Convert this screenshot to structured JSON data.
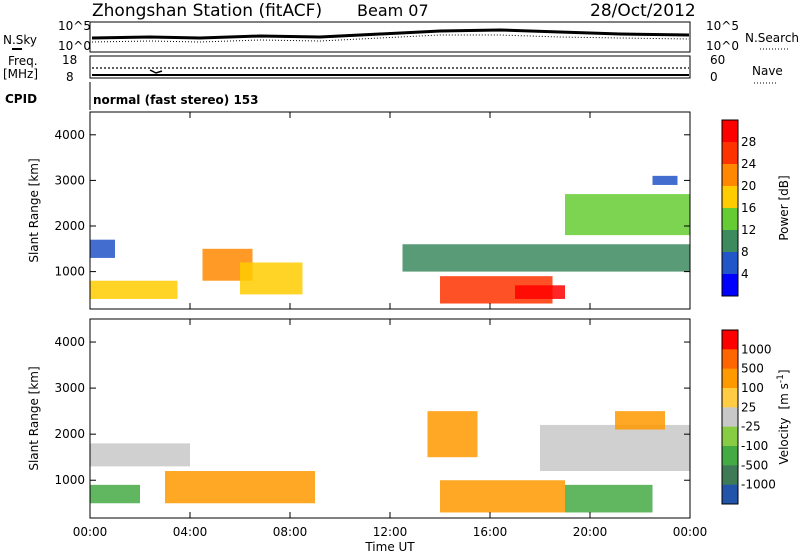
{
  "header": {
    "title": "Zhongshan Station (fitACF)",
    "beam": "Beam 07",
    "date": "28/Oct/2012"
  },
  "panels": {
    "nsky_label": "N.Sky",
    "nsky_ticks": [
      "10^5",
      "10^0"
    ],
    "nsearch_label": "N.Search",
    "nsearch_ticks": [
      "10^5",
      "10^0"
    ],
    "freq_label": "Freq.",
    "freq_unit": "[MHz]",
    "freq_ticks": [
      "18",
      "8"
    ],
    "nave_label": "Nave",
    "nave_ticks": [
      "60",
      "0"
    ],
    "cpid_label": "CPID",
    "cpid_text": "normal (fast stereo) 153"
  },
  "chart_data": [
    {
      "type": "heatmap",
      "name": "power",
      "ylabel": "Slant Range [km]",
      "yticks": [
        "4000",
        "3000",
        "2000",
        "1000"
      ],
      "ylim": [
        180,
        4500
      ],
      "colorbar_label": "Power [dB]",
      "colorbar_ticks": [
        "28",
        "24",
        "20",
        "16",
        "12",
        "8",
        "4"
      ],
      "colors": [
        "#0000ff",
        "#2255c8",
        "#3d8a5f",
        "#66cc33",
        "#ffcc00",
        "#ff8800",
        "#ff3300",
        "#ff0000"
      ],
      "blobs": [
        {
          "t0": 0.0,
          "t1": 3.5,
          "r0": 400,
          "r1": 800,
          "level": 4
        },
        {
          "t0": 0.0,
          "t1": 1.0,
          "r0": 1300,
          "r1": 1700,
          "level": 1
        },
        {
          "t0": 4.5,
          "t1": 6.5,
          "r0": 800,
          "r1": 1500,
          "level": 5
        },
        {
          "t0": 6.0,
          "t1": 8.5,
          "r0": 500,
          "r1": 1200,
          "level": 4
        },
        {
          "t0": 14.0,
          "t1": 18.5,
          "r0": 300,
          "r1": 900,
          "level": 6
        },
        {
          "t0": 17.0,
          "t1": 19.0,
          "r0": 400,
          "r1": 700,
          "level": 7
        },
        {
          "t0": 12.5,
          "t1": 24.0,
          "r0": 1000,
          "r1": 1600,
          "level": 2
        },
        {
          "t0": 19.0,
          "t1": 24.0,
          "r0": 1800,
          "r1": 2700,
          "level": 3
        },
        {
          "t0": 22.5,
          "t1": 23.5,
          "r0": 2900,
          "r1": 3100,
          "level": 1
        }
      ]
    },
    {
      "type": "heatmap",
      "name": "velocity",
      "xlabel": "Time UT",
      "xticks": [
        "00:00",
        "04:00",
        "08:00",
        "12:00",
        "16:00",
        "20:00",
        "00:00"
      ],
      "ylabel": "Slant Range [km]",
      "yticks": [
        "4000",
        "3000",
        "2000",
        "1000"
      ],
      "ylim": [
        180,
        4500
      ],
      "colorbar_label": "Velocity",
      "colorbar_unit": "[m s",
      "colorbar_unit_exp": "-1",
      "colorbar_unit_end": "]",
      "colorbar_ticks": [
        "1000",
        "500",
        "100",
        "25",
        "-25",
        "-100",
        "-500",
        "-1000"
      ],
      "colors": [
        "#2255aa",
        "#3d7a55",
        "#44aa44",
        "#88cc44",
        "#c8c8c8",
        "#ffcc44",
        "#ff9900",
        "#ff6600",
        "#ff0000"
      ],
      "blobs": [
        {
          "t0": 0.0,
          "t1": 2.0,
          "r0": 500,
          "r1": 900,
          "level": 2
        },
        {
          "t0": 0.0,
          "t1": 4.0,
          "r0": 1300,
          "r1": 1800,
          "level": 4
        },
        {
          "t0": 3.0,
          "t1": 9.0,
          "r0": 500,
          "r1": 1200,
          "level": 6
        },
        {
          "t0": 14.0,
          "t1": 19.0,
          "r0": 300,
          "r1": 1000,
          "level": 6
        },
        {
          "t0": 13.5,
          "t1": 15.5,
          "r0": 1500,
          "r1": 2500,
          "level": 6
        },
        {
          "t0": 19.0,
          "t1": 22.5,
          "r0": 300,
          "r1": 900,
          "level": 2
        },
        {
          "t0": 18.0,
          "t1": 24.0,
          "r0": 1200,
          "r1": 2200,
          "level": 4
        },
        {
          "t0": 21.0,
          "t1": 23.0,
          "r0": 2100,
          "r1": 2500,
          "level": 6
        }
      ]
    }
  ]
}
